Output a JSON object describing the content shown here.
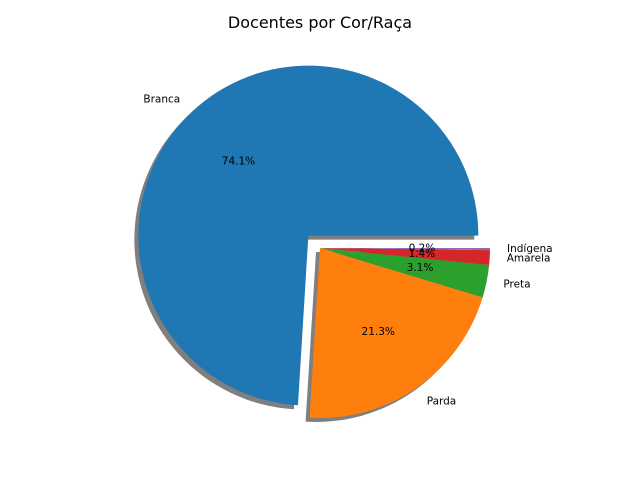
{
  "chart_data": {
    "type": "pie",
    "title": "Docentes por Cor/Raça",
    "start_angle_deg": 0,
    "direction": "counterclockwise",
    "shadow": true,
    "exploded": [
      "Branca"
    ],
    "legend": "none",
    "slices": [
      {
        "label": "Branca",
        "value": 74.1,
        "pct_label": "74.1%",
        "color": "#1f77b4"
      },
      {
        "label": "Parda",
        "value": 21.3,
        "pct_label": "21.3%",
        "color": "#ff7f0e"
      },
      {
        "label": "Preta",
        "value": 3.1,
        "pct_label": "3.1%",
        "color": "#2ca02c"
      },
      {
        "label": "Amarela",
        "value": 1.4,
        "pct_label": "1.4%",
        "color": "#d62728"
      },
      {
        "label": "Indígena",
        "value": 0.2,
        "pct_label": "0.2%",
        "color": "#9467bd"
      }
    ]
  }
}
